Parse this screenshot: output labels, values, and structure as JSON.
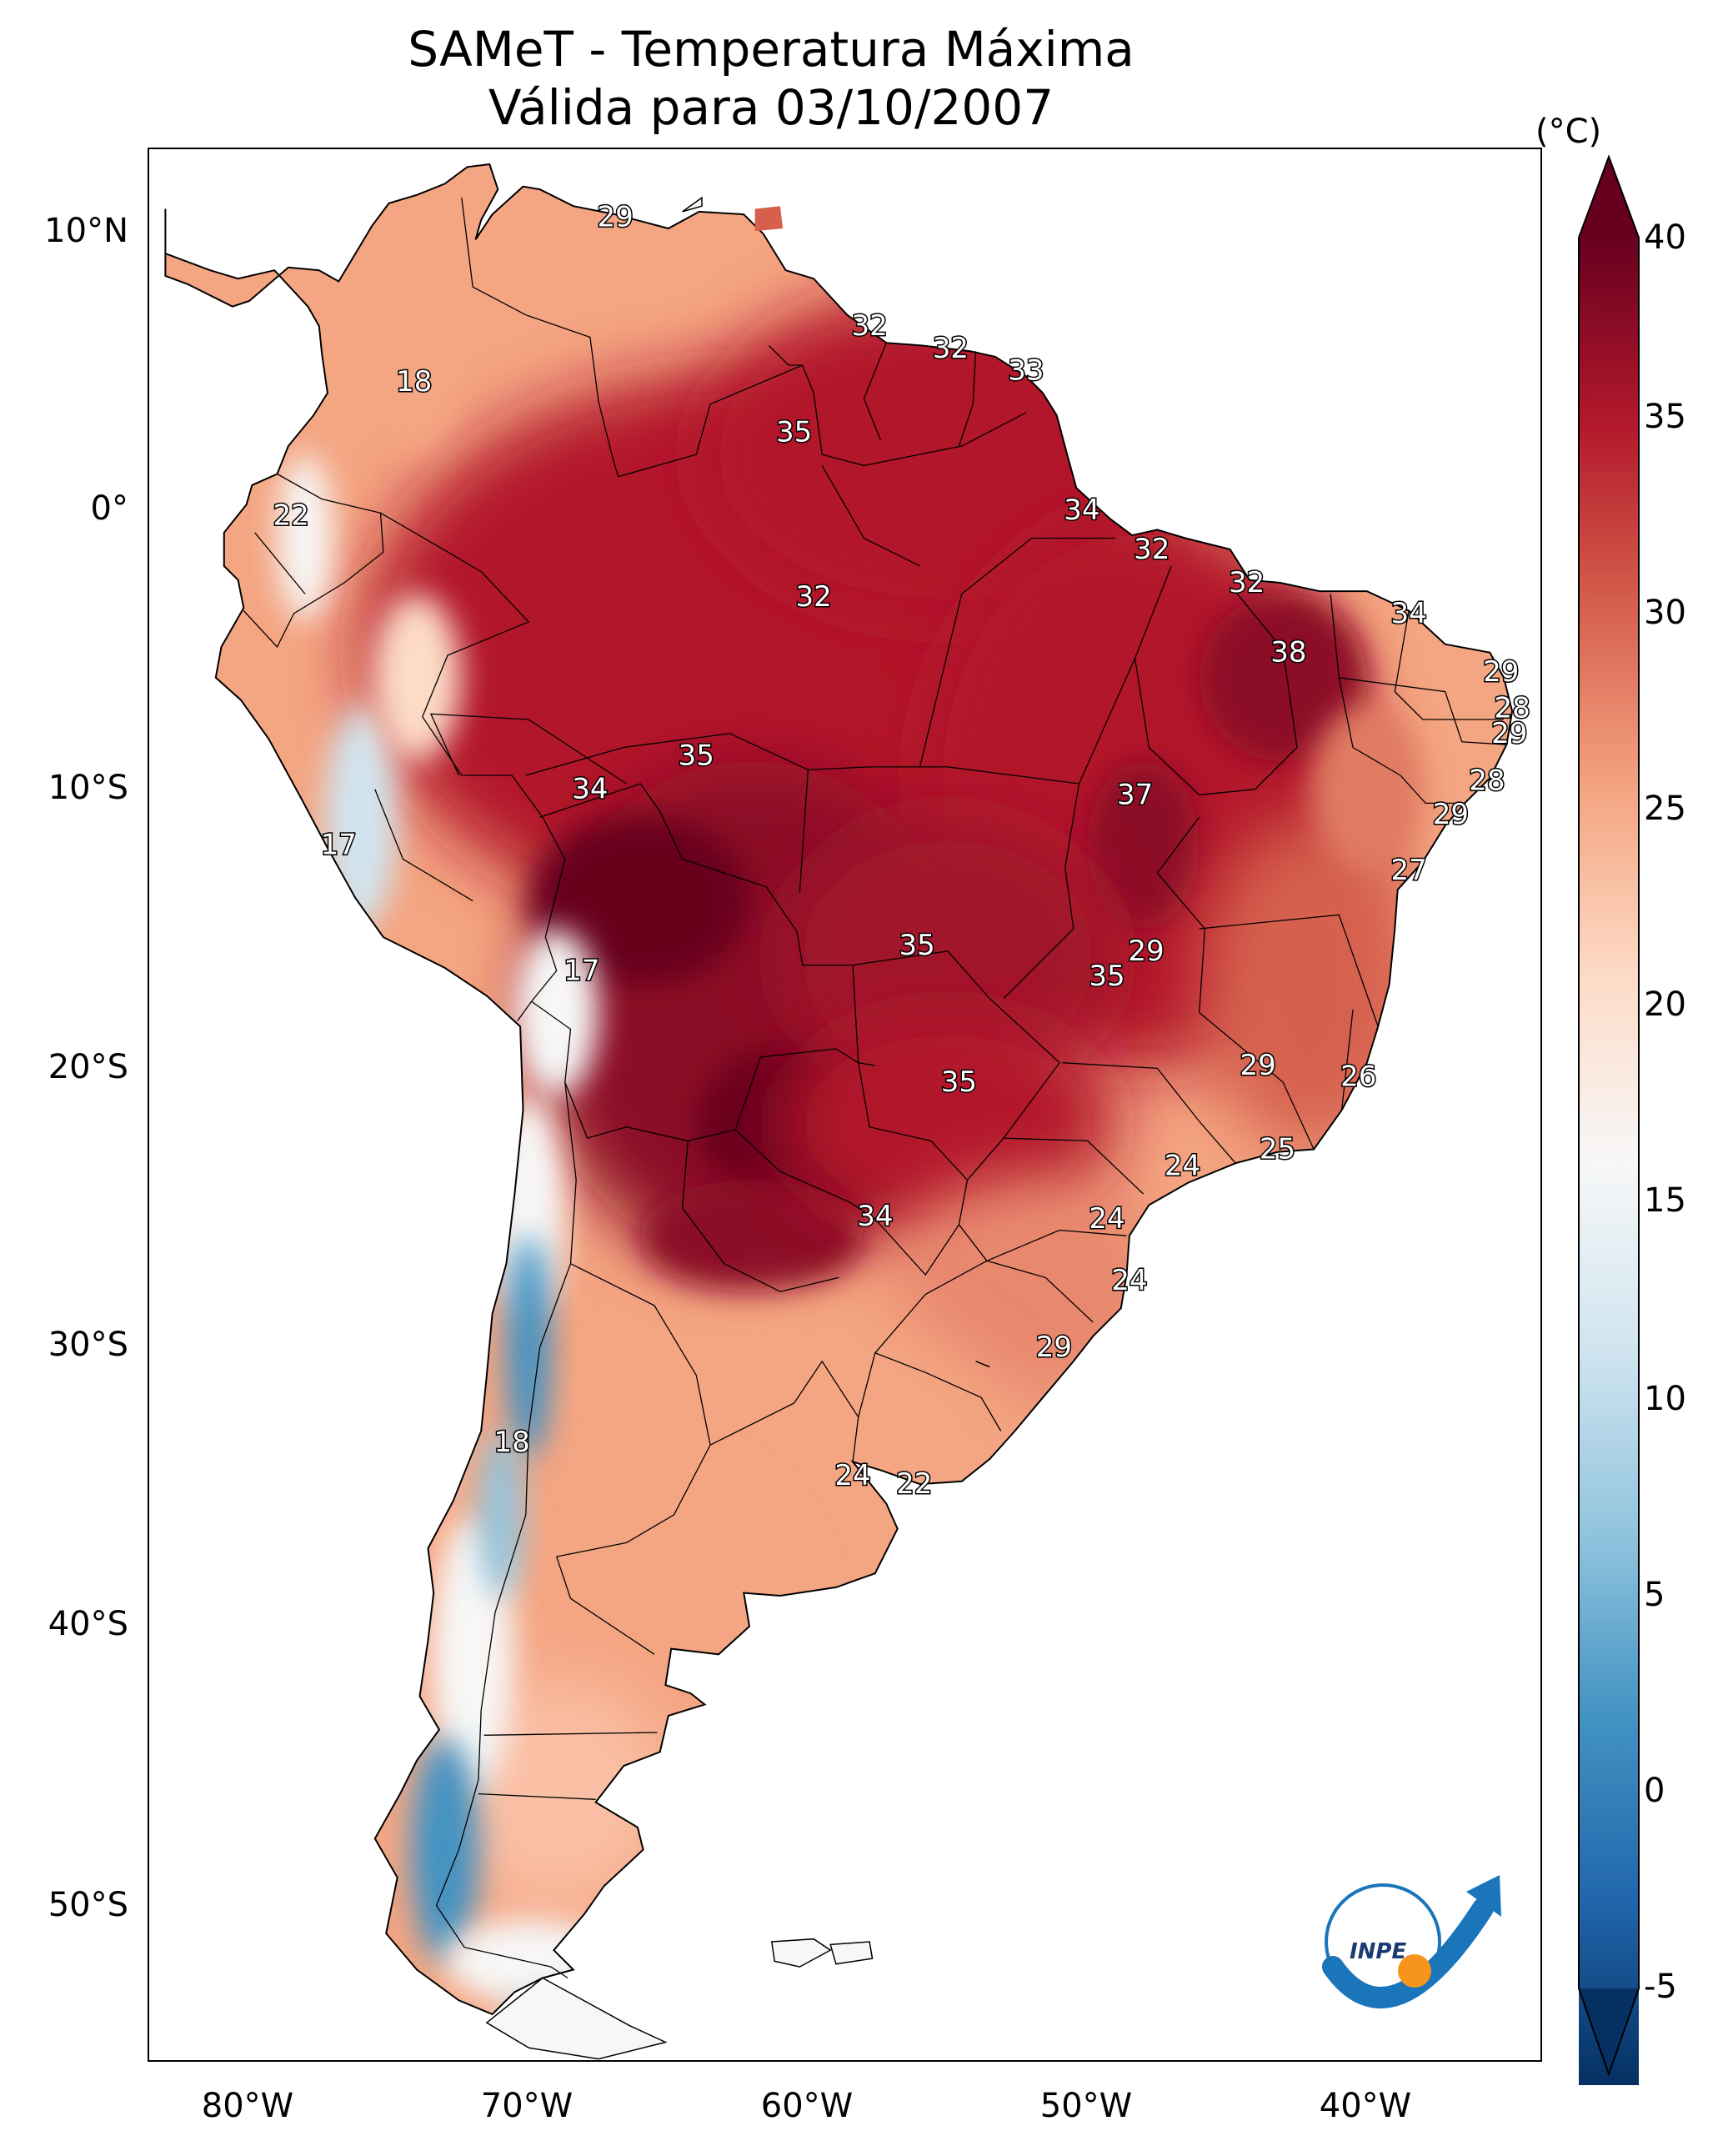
{
  "title_line1": "SAMeT - Temperatura Máxima",
  "title_line2": "Válida para 03/10/2007",
  "lat_ticks": [
    "10°N",
    "0°",
    "10°S",
    "20°S",
    "30°S",
    "40°S",
    "50°S"
  ],
  "lon_ticks": [
    "80°W",
    "70°W",
    "60°W",
    "50°W",
    "40°W"
  ],
  "colorbar": {
    "unit": "(°C)",
    "ticks": [
      "40",
      "35",
      "30",
      "25",
      "20",
      "15",
      "10",
      "5",
      "0",
      "-5"
    ],
    "range": [
      -5,
      40
    ],
    "extend": "both",
    "colormap": "RdBu_r",
    "colors": [
      "#053061",
      "#2166ac",
      "#4393c3",
      "#92c5de",
      "#d1e5f0",
      "#f7f7f7",
      "#fddbc7",
      "#f4a582",
      "#d6604d",
      "#b2182b",
      "#67001f"
    ]
  },
  "station_labels": [
    {
      "text": "29",
      "lon": -66.9,
      "lat": 10.5
    },
    {
      "text": "32",
      "lon": -57.8,
      "lat": 6.6
    },
    {
      "text": "32",
      "lon": -54.9,
      "lat": 5.8
    },
    {
      "text": "33",
      "lon": -52.2,
      "lat": 5.0
    },
    {
      "text": "18",
      "lon": -74.1,
      "lat": 4.6
    },
    {
      "text": "35",
      "lon": -60.5,
      "lat": 2.8
    },
    {
      "text": "34",
      "lon": -50.2,
      "lat": 0.0
    },
    {
      "text": "22",
      "lon": -78.5,
      "lat": -0.2
    },
    {
      "text": "32",
      "lon": -47.7,
      "lat": -1.4
    },
    {
      "text": "32",
      "lon": -59.8,
      "lat": -3.1
    },
    {
      "text": "32",
      "lon": -44.3,
      "lat": -2.6
    },
    {
      "text": "34",
      "lon": -38.5,
      "lat": -3.7
    },
    {
      "text": "38",
      "lon": -42.8,
      "lat": -5.1
    },
    {
      "text": "29",
      "lon": -35.2,
      "lat": -5.8
    },
    {
      "text": "28",
      "lon": -34.8,
      "lat": -7.1
    },
    {
      "text": "29",
      "lon": -34.9,
      "lat": -8.0
    },
    {
      "text": "35",
      "lon": -64.0,
      "lat": -8.8
    },
    {
      "text": "28",
      "lon": -35.7,
      "lat": -9.7
    },
    {
      "text": "34",
      "lon": -67.8,
      "lat": -10.0
    },
    {
      "text": "37",
      "lon": -48.3,
      "lat": -10.2
    },
    {
      "text": "29",
      "lon": -37.0,
      "lat": -10.9
    },
    {
      "text": "17",
      "lon": -76.8,
      "lat": -12.0
    },
    {
      "text": "27",
      "lon": -38.5,
      "lat": -12.9
    },
    {
      "text": "35",
      "lon": -56.1,
      "lat": -15.6
    },
    {
      "text": "29",
      "lon": -47.9,
      "lat": -15.8
    },
    {
      "text": "17",
      "lon": -68.1,
      "lat": -16.5
    },
    {
      "text": "35",
      "lon": -49.3,
      "lat": -16.7
    },
    {
      "text": "29",
      "lon": -43.9,
      "lat": -19.9
    },
    {
      "text": "26",
      "lon": -40.3,
      "lat": -20.3
    },
    {
      "text": "35",
      "lon": -54.6,
      "lat": -20.5
    },
    {
      "text": "25",
      "lon": -43.2,
      "lat": -22.9
    },
    {
      "text": "24",
      "lon": -46.6,
      "lat": -23.5
    },
    {
      "text": "34",
      "lon": -57.6,
      "lat": -25.3
    },
    {
      "text": "24",
      "lon": -49.3,
      "lat": -25.4
    },
    {
      "text": "24",
      "lon": -48.5,
      "lat": -27.6
    },
    {
      "text": "29",
      "lon": -51.2,
      "lat": -30.0
    },
    {
      "text": "18",
      "lon": -70.6,
      "lat": -33.4
    },
    {
      "text": "24",
      "lon": -58.4,
      "lat": -34.6
    },
    {
      "text": "22",
      "lon": -56.2,
      "lat": -34.9
    }
  ],
  "logo": {
    "text": "INPE",
    "accent_blue": "#1a75bb",
    "accent_orange": "#f7941d"
  }
}
